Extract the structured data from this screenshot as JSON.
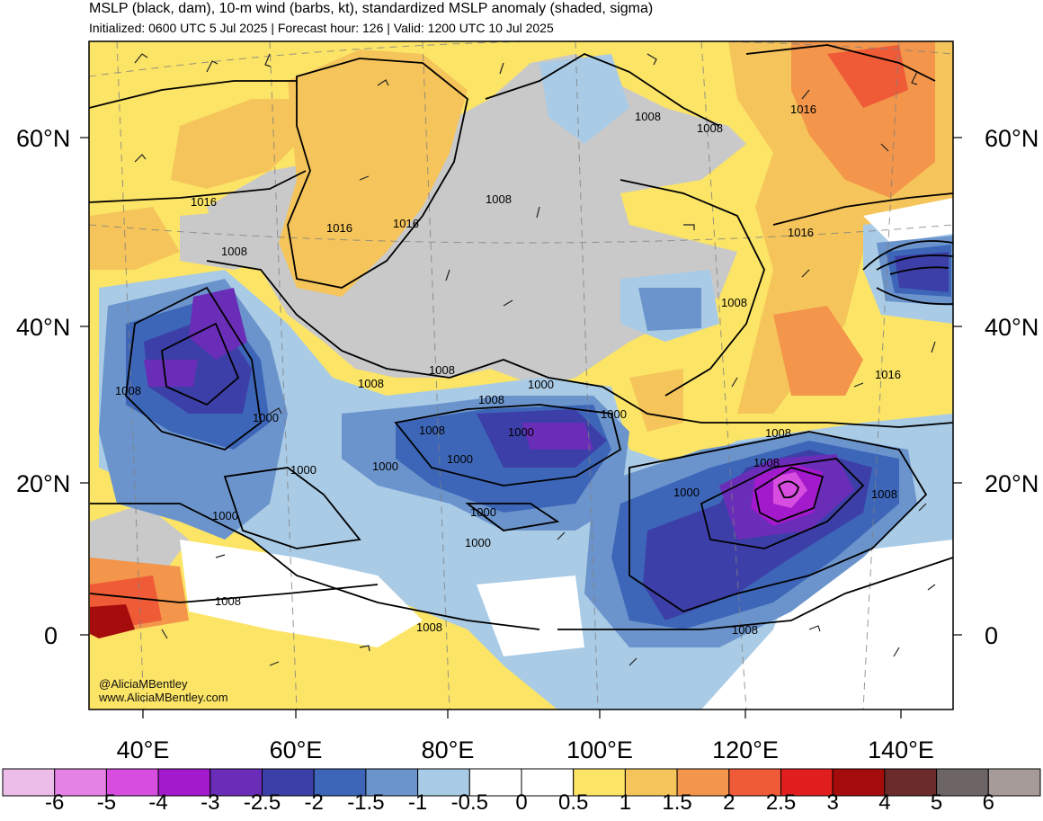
{
  "header": {
    "title": "MSLP (black, dam), 10-m wind (barbs, kt), standardized MSLP anomaly (shaded, sigma)",
    "subtitle": "Initialized: 0600 UTC 5 Jul 2025 | Forecast hour: 126 | Valid: 1200 UTC 10 Jul 2025"
  },
  "map": {
    "lat_labels": [
      "60°N",
      "40°N",
      "20°N",
      "0"
    ],
    "lon_labels": [
      "40°E",
      "60°E",
      "80°E",
      "100°E",
      "120°E",
      "140°E"
    ],
    "isobar_labels": [
      {
        "text": "1016",
        "id": "a"
      },
      {
        "text": "1016",
        "id": "b"
      },
      {
        "text": "1016",
        "id": "c"
      },
      {
        "text": "1016",
        "id": "d"
      },
      {
        "text": "1016",
        "id": "e"
      },
      {
        "text": "1016",
        "id": "f"
      },
      {
        "text": "1008",
        "id": "g"
      },
      {
        "text": "1008",
        "id": "h"
      },
      {
        "text": "1008",
        "id": "i"
      },
      {
        "text": "1008",
        "id": "j"
      },
      {
        "text": "1008",
        "id": "k"
      },
      {
        "text": "1008",
        "id": "l"
      },
      {
        "text": "1008",
        "id": "m"
      },
      {
        "text": "1008",
        "id": "n"
      },
      {
        "text": "1008",
        "id": "o"
      },
      {
        "text": "1008",
        "id": "p"
      },
      {
        "text": "1008",
        "id": "q"
      },
      {
        "text": "1008",
        "id": "r"
      },
      {
        "text": "1008",
        "id": "s"
      },
      {
        "text": "1008",
        "id": "t"
      },
      {
        "text": "1008",
        "id": "u"
      },
      {
        "text": "1008",
        "id": "v"
      },
      {
        "text": "1000",
        "id": "w"
      },
      {
        "text": "1000",
        "id": "x"
      },
      {
        "text": "1000",
        "id": "y"
      },
      {
        "text": "1000",
        "id": "z"
      },
      {
        "text": "1000",
        "id": "aa"
      },
      {
        "text": "1000",
        "id": "ab"
      },
      {
        "text": "1000",
        "id": "ac"
      },
      {
        "text": "1000",
        "id": "ad"
      },
      {
        "text": "1000",
        "id": "ae"
      },
      {
        "text": "1000",
        "id": "af"
      },
      {
        "text": "1000",
        "id": "ag"
      },
      {
        "text": "1000",
        "id": "ah"
      }
    ],
    "credit_line1": "@AliciaMBentley",
    "credit_line2": "www.AliciaMBentley.com"
  },
  "colorbar": {
    "labels": [
      "-6",
      "-5",
      "-4",
      "-3",
      "-2.5",
      "-2",
      "-1.5",
      "-1",
      "-0.5",
      "0",
      "0.5",
      "1",
      "1.5",
      "2",
      "2.5",
      "3",
      "4",
      "5",
      "6"
    ],
    "colors": [
      "#ebbde8",
      "#e582e6",
      "#d64de0",
      "#a319cc",
      "#6a2db8",
      "#3d3fa8",
      "#3d66b8",
      "#6b94cc",
      "#a9cbe6",
      "#ffffff",
      "#ffffff",
      "#fbe466",
      "#f5c45a",
      "#f3954a",
      "#ef5a37",
      "#e01e1e",
      "#a50d0d",
      "#6b2b2b",
      "#6d6565",
      "#a69b99"
    ]
  }
}
